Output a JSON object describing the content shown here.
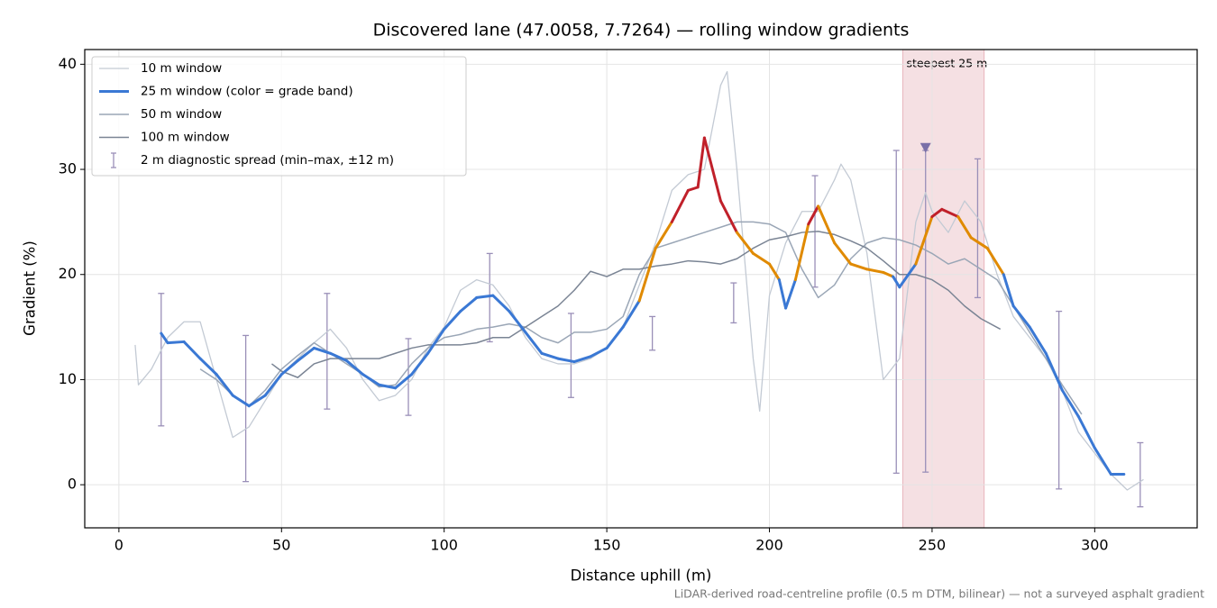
{
  "chart_data": {
    "type": "line",
    "title": "Discovered lane (47.0058, 7.7264) — rolling window gradients",
    "x_label": "Distance uphill (m)",
    "y_label": "Gradient (%)",
    "footnote": "LiDAR-derived road-centreline profile (0.5 m DTM, bilinear) — not a surveyed asphalt gradient",
    "xlim": [
      -10.5,
      331.5
    ],
    "ylim": [
      -4.1,
      41.4
    ],
    "xticks": [
      0,
      50,
      100,
      150,
      200,
      250,
      300
    ],
    "yticks": [
      0,
      10,
      20,
      30,
      40
    ],
    "grid": true,
    "legend": "upper left",
    "series": [
      {
        "name": "10 m window",
        "color": "#c3cad4",
        "width": 1.3,
        "x": [
          5,
          6,
          10,
          15,
          20,
          25,
          30,
          35,
          40,
          45,
          50,
          55,
          60,
          65,
          70,
          75,
          80,
          85,
          90,
          95,
          100,
          105,
          110,
          115,
          120,
          125,
          130,
          135,
          140,
          145,
          150,
          155,
          160,
          165,
          170,
          175,
          180,
          185,
          187,
          190,
          195,
          197,
          200,
          205,
          210,
          215,
          220,
          222,
          225,
          230,
          235,
          240,
          245,
          248,
          250,
          255,
          260,
          265,
          270,
          275,
          280,
          285,
          290,
          295,
          300,
          305,
          310,
          315
        ],
        "values": [
          13.3,
          9.5,
          11,
          14,
          15.5,
          15.5,
          10,
          4.5,
          5.5,
          8,
          10.5,
          12,
          13.5,
          14.8,
          13,
          10,
          8,
          8.5,
          10,
          13,
          15,
          18.5,
          19.5,
          19,
          17,
          14,
          12,
          11.5,
          11.5,
          12,
          13,
          15,
          19,
          23,
          28,
          29.5,
          30,
          38,
          39.3,
          30,
          12,
          7,
          18,
          23,
          26,
          26,
          29,
          30.5,
          29,
          22,
          10,
          12,
          25,
          27.8,
          26,
          24,
          27,
          25,
          20,
          16,
          14,
          12,
          9,
          5,
          3,
          1,
          -0.5,
          0.5
        ]
      },
      {
        "name": "25 m window (color = grade band)",
        "color": "#3a78d4",
        "width": 3,
        "band_limits": [
          20,
          25
        ],
        "band_colors": [
          "#3a78d4",
          "#e08a00",
          "#c0202a"
        ],
        "x": [
          13,
          15,
          20,
          25,
          30,
          35,
          40,
          45,
          50,
          55,
          60,
          65,
          70,
          75,
          80,
          85,
          90,
          95,
          100,
          105,
          110,
          115,
          120,
          125,
          130,
          135,
          140,
          145,
          150,
          155,
          160,
          165,
          170,
          175,
          178,
          180,
          185,
          190,
          195,
          200,
          203,
          205,
          208,
          212,
          215,
          220,
          225,
          230,
          235,
          238,
          240,
          245,
          250,
          253,
          258,
          262,
          267,
          272,
          275,
          280,
          285,
          290,
          295,
          300,
          305,
          309
        ],
        "values": [
          14.4,
          13.5,
          13.6,
          12,
          10.5,
          8.5,
          7.5,
          8.5,
          10.5,
          11.8,
          13,
          12.5,
          11.8,
          10.5,
          9.5,
          9.2,
          10.5,
          12.5,
          14.8,
          16.5,
          17.8,
          18,
          16.5,
          14.5,
          12.5,
          12,
          11.7,
          12.2,
          13,
          15,
          17.5,
          22.5,
          25,
          28,
          28.3,
          33,
          27,
          24,
          22,
          21,
          19.5,
          16.8,
          19.5,
          24.8,
          26.5,
          23,
          21,
          20.5,
          20.2,
          19.8,
          18.8,
          21,
          25.5,
          26.2,
          25.5,
          23.5,
          22.5,
          20,
          17,
          15,
          12.5,
          9,
          6.5,
          3.5,
          1,
          1
        ]
      },
      {
        "name": "50 m window",
        "color": "#9aa6b6",
        "width": 1.5,
        "x": [
          25,
          30,
          35,
          40,
          45,
          50,
          55,
          60,
          65,
          70,
          75,
          80,
          85,
          90,
          95,
          100,
          105,
          110,
          115,
          120,
          125,
          130,
          135,
          140,
          145,
          150,
          155,
          160,
          165,
          170,
          175,
          180,
          185,
          190,
          195,
          200,
          205,
          210,
          215,
          220,
          225,
          230,
          235,
          240,
          245,
          250,
          255,
          260,
          265,
          270,
          275,
          280,
          285,
          290,
          296
        ],
        "values": [
          11,
          10,
          8.5,
          7.5,
          9,
          11,
          12.3,
          13.5,
          12.5,
          11.5,
          10.5,
          9.3,
          9.5,
          11.5,
          13,
          14,
          14.3,
          14.8,
          15,
          15.3,
          15,
          14,
          13.5,
          14.5,
          14.5,
          14.8,
          16,
          20,
          22.5,
          23,
          23.5,
          24,
          24.5,
          25,
          25,
          24.8,
          24,
          20.5,
          17.8,
          19,
          21.5,
          23,
          23.5,
          23.3,
          22.8,
          22,
          21,
          21.5,
          20.5,
          19.5,
          17,
          14.5,
          12,
          9.5,
          6.7
        ]
      },
      {
        "name": "100 m window",
        "color": "#7a8494",
        "width": 1.5,
        "x": [
          47,
          50,
          55,
          60,
          65,
          70,
          75,
          80,
          85,
          90,
          95,
          100,
          105,
          110,
          115,
          120,
          125,
          130,
          135,
          140,
          145,
          150,
          155,
          160,
          165,
          170,
          175,
          180,
          185,
          190,
          195,
          200,
          205,
          210,
          215,
          220,
          225,
          230,
          235,
          240,
          245,
          250,
          255,
          260,
          265,
          271
        ],
        "values": [
          11.5,
          10.8,
          10.2,
          11.5,
          12,
          12,
          12,
          12,
          12.5,
          13,
          13.3,
          13.3,
          13.3,
          13.5,
          14,
          14,
          15,
          16,
          17,
          18.5,
          20.3,
          19.8,
          20.5,
          20.5,
          20.8,
          21,
          21.3,
          21.2,
          21,
          21.5,
          22.5,
          23.3,
          23.6,
          24,
          24.1,
          23.8,
          23.2,
          22.5,
          21.3,
          20,
          20,
          19.5,
          18.5,
          17,
          15.8,
          14.8
        ]
      }
    ],
    "error_bars": {
      "name": "2 m diagnostic spread (min–max, ±12 m)",
      "color": "#9a8fb8",
      "x": [
        13,
        39,
        64,
        89,
        114,
        139,
        164,
        189,
        214,
        239,
        248,
        264,
        289,
        314
      ],
      "min": [
        5.6,
        0.3,
        7.2,
        6.6,
        13.6,
        8.3,
        12.8,
        15.4,
        18.8,
        1.1,
        1.2,
        17.8,
        -0.4,
        -2.1
      ],
      "max": [
        18.2,
        14.2,
        18.2,
        13.9,
        22,
        16.3,
        16,
        19.2,
        29.4,
        31.8,
        31.8,
        31,
        16.5,
        4
      ]
    },
    "marker": {
      "x": 248,
      "y": 32,
      "color": "#7a70a8"
    },
    "span": {
      "label": "steepest 25 m",
      "start": 241,
      "end": 266,
      "color": "#e8b4bc",
      "label_color": "#c0202a"
    }
  }
}
